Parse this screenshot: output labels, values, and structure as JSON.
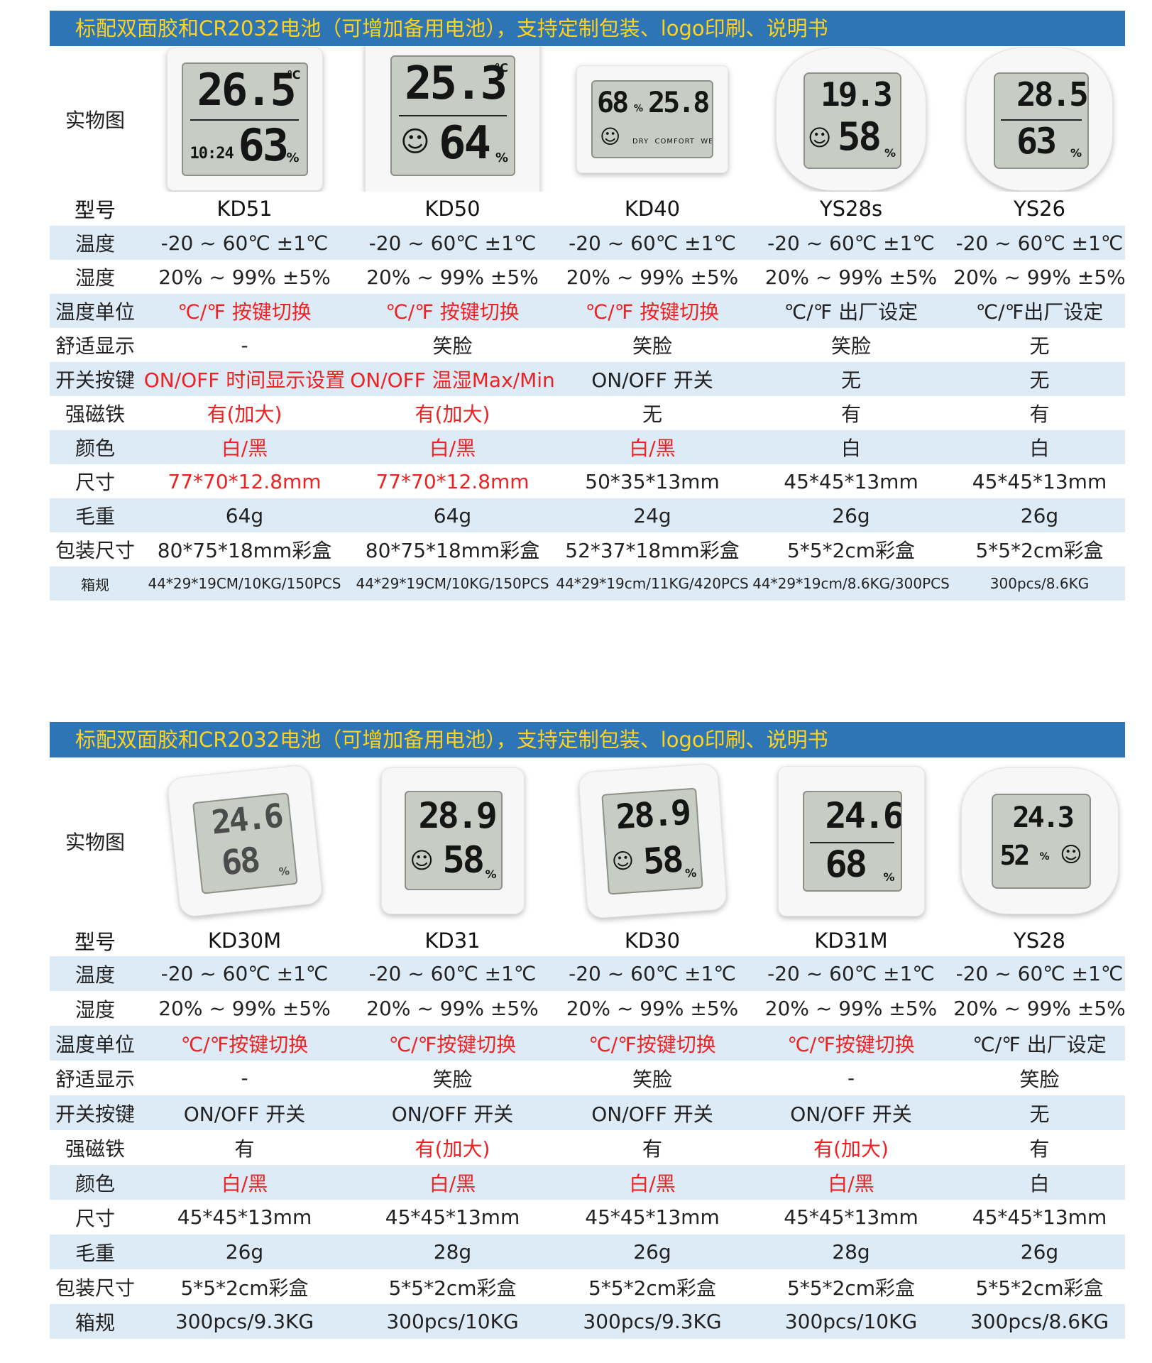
{
  "sections": [
    {
      "banner": "标配双面胶和CR2032电池（可增加备用电池），支持定制包装、logo印刷、说明书",
      "image_label": "实物图",
      "model_label": "型号",
      "products": [
        {
          "model": "KD51",
          "display": {
            "temp": "26.5",
            "hum": "63",
            "extra": "10:24"
          }
        },
        {
          "model": "KD50",
          "display": {
            "temp": "25.3",
            "hum": "64"
          }
        },
        {
          "model": "KD40",
          "display": {
            "temp": "25.8",
            "hum": "68"
          }
        },
        {
          "model": "YS28s",
          "display": {
            "temp": "19.3",
            "hum": "58"
          }
        },
        {
          "model": "YS26",
          "display": {
            "temp": "28.5",
            "hum": "63"
          }
        }
      ],
      "rows": [
        {
          "label": "温度",
          "shade": true,
          "cells": [
            {
              "t": "-20 ~ 60℃ ±1℃"
            },
            {
              "t": "-20 ~ 60℃ ±1℃"
            },
            {
              "t": "-20 ~ 60℃ ±1℃"
            },
            {
              "t": "-20 ~ 60℃ ±1℃"
            },
            {
              "t": "-20 ~ 60℃ ±1℃"
            }
          ]
        },
        {
          "label": "湿度",
          "shade": false,
          "cells": [
            {
              "t": "20% ~ 99% ±5%"
            },
            {
              "t": "20% ~ 99% ±5%"
            },
            {
              "t": "20% ~ 99% ±5%"
            },
            {
              "t": "20% ~ 99% ±5%"
            },
            {
              "t": "20% ~ 99% ±5%"
            }
          ]
        },
        {
          "label": "温度单位",
          "shade": true,
          "cells": [
            {
              "t": "℃/℉  按键切换",
              "red": true
            },
            {
              "t": "℃/℉  按键切换",
              "red": true
            },
            {
              "t": "℃/℉  按键切换",
              "red": true
            },
            {
              "t": "℃/℉  出厂设定"
            },
            {
              "t": "℃/℉出厂设定"
            }
          ]
        },
        {
          "label": "舒适显示",
          "shade": false,
          "cells": [
            {
              "t": "-"
            },
            {
              "t": "笑脸"
            },
            {
              "t": "笑脸"
            },
            {
              "t": "笑脸"
            },
            {
              "t": "无"
            }
          ]
        },
        {
          "label": "开关按键",
          "shade": true,
          "cells": [
            {
              "t": "ON/OFF 时间显示设置",
              "red": true
            },
            {
              "t": "ON/OFF 温湿Max/Min",
              "red": true
            },
            {
              "t": "ON/OFF   开关"
            },
            {
              "t": "无"
            },
            {
              "t": "无"
            }
          ]
        },
        {
          "label": "强磁铁",
          "shade": false,
          "cells": [
            {
              "t": "有(加大)",
              "red": true
            },
            {
              "t": "有(加大)",
              "red": true
            },
            {
              "t": "无"
            },
            {
              "t": "有"
            },
            {
              "t": "有"
            }
          ]
        },
        {
          "label": "颜色",
          "shade": true,
          "cells": [
            {
              "t": "白/黑",
              "red": true
            },
            {
              "t": "白/黑",
              "red": true
            },
            {
              "t": "白/黑",
              "red": true
            },
            {
              "t": "白"
            },
            {
              "t": "白"
            }
          ]
        },
        {
          "label": "尺寸",
          "shade": false,
          "cells": [
            {
              "t": "77*70*12.8mm",
              "red": true
            },
            {
              "t": "77*70*12.8mm",
              "red": true
            },
            {
              "t": "50*35*13mm"
            },
            {
              "t": "45*45*13mm"
            },
            {
              "t": "45*45*13mm"
            }
          ]
        },
        {
          "label": "毛重",
          "shade": true,
          "cells": [
            {
              "t": "64g"
            },
            {
              "t": "64g"
            },
            {
              "t": "24g"
            },
            {
              "t": "26g"
            },
            {
              "t": "26g"
            }
          ]
        },
        {
          "label": "包装尺寸",
          "shade": false,
          "cells": [
            {
              "t": "80*75*18mm彩盒"
            },
            {
              "t": "80*75*18mm彩盒"
            },
            {
              "t": "52*37*18mm彩盒"
            },
            {
              "t": "5*5*2cm彩盒"
            },
            {
              "t": "5*5*2cm彩盒"
            }
          ]
        },
        {
          "label": "箱规",
          "shade": true,
          "small": true,
          "cells": [
            {
              "t": "44*29*19CM/10KG/150PCS"
            },
            {
              "t": "44*29*19CM/10KG/150PCS"
            },
            {
              "t": "44*29*19cm/11KG/420PCS"
            },
            {
              "t": "44*29*19cm/8.6KG/300PCS"
            },
            {
              "t": "300pcs/8.6KG"
            }
          ]
        }
      ]
    },
    {
      "banner": "标配双面胶和CR2032电池（可增加备用电池），支持定制包装、logo印刷、说明书",
      "image_label": "实物图",
      "model_label": "型号",
      "products": [
        {
          "model": "KD30M",
          "display": {
            "temp": "24.6",
            "hum": "68"
          }
        },
        {
          "model": "KD31",
          "display": {
            "temp": "28.9",
            "hum": "58"
          }
        },
        {
          "model": "KD30",
          "display": {
            "temp": "28.9",
            "hum": "58"
          }
        },
        {
          "model": "KD31M",
          "display": {
            "temp": "24.6",
            "hum": "68"
          }
        },
        {
          "model": "YS28",
          "display": {
            "temp": "24.3",
            "hum": "52"
          }
        }
      ],
      "rows": [
        {
          "label": "温度",
          "shade": true,
          "cells": [
            {
              "t": "-20 ~ 60℃ ±1℃"
            },
            {
              "t": "-20 ~ 60℃ ±1℃"
            },
            {
              "t": "-20 ~ 60℃ ±1℃"
            },
            {
              "t": "-20 ~ 60℃ ±1℃"
            },
            {
              "t": "-20 ~ 60℃ ±1℃"
            }
          ]
        },
        {
          "label": "湿度",
          "shade": false,
          "cells": [
            {
              "t": "20% ~ 99% ±5%"
            },
            {
              "t": "20% ~ 99% ±5%"
            },
            {
              "t": "20% ~ 99% ±5%"
            },
            {
              "t": "20% ~ 99% ±5%"
            },
            {
              "t": "20% ~ 99% ±5%"
            }
          ]
        },
        {
          "label": "温度单位",
          "shade": true,
          "cells": [
            {
              "t": "℃/℉按键切换",
              "red": true
            },
            {
              "t": "℃/℉按键切换",
              "red": true
            },
            {
              "t": "℃/℉按键切换",
              "red": true
            },
            {
              "t": "℃/℉按键切换",
              "red": true
            },
            {
              "t": "℃/℉  出厂设定"
            }
          ]
        },
        {
          "label": "舒适显示",
          "shade": false,
          "cells": [
            {
              "t": "-"
            },
            {
              "t": "笑脸"
            },
            {
              "t": "笑脸"
            },
            {
              "t": "-"
            },
            {
              "t": "笑脸"
            }
          ]
        },
        {
          "label": "开关按键",
          "shade": true,
          "cells": [
            {
              "t": "ON/OFF   开关"
            },
            {
              "t": "ON/OFF   开关"
            },
            {
              "t": "ON/OFF   开关"
            },
            {
              "t": "ON/OFF   开关"
            },
            {
              "t": "无"
            }
          ]
        },
        {
          "label": "强磁铁",
          "shade": false,
          "cells": [
            {
              "t": "有"
            },
            {
              "t": "有(加大)",
              "red": true
            },
            {
              "t": "有"
            },
            {
              "t": "有(加大)",
              "red": true
            },
            {
              "t": "有"
            }
          ]
        },
        {
          "label": "颜色",
          "shade": true,
          "cells": [
            {
              "t": "白/黑",
              "red": true
            },
            {
              "t": "白/黑",
              "red": true
            },
            {
              "t": "白/黑",
              "red": true
            },
            {
              "t": "白/黑",
              "red": true
            },
            {
              "t": "白"
            }
          ]
        },
        {
          "label": "尺寸",
          "shade": false,
          "cells": [
            {
              "t": "45*45*13mm"
            },
            {
              "t": "45*45*13mm"
            },
            {
              "t": "45*45*13mm"
            },
            {
              "t": "45*45*13mm"
            },
            {
              "t": "45*45*13mm"
            }
          ]
        },
        {
          "label": "毛重",
          "shade": true,
          "cells": [
            {
              "t": "26g"
            },
            {
              "t": "28g"
            },
            {
              "t": "26g"
            },
            {
              "t": "28g"
            },
            {
              "t": "26g"
            }
          ]
        },
        {
          "label": "包装尺寸",
          "shade": false,
          "cells": [
            {
              "t": "5*5*2cm彩盒"
            },
            {
              "t": "5*5*2cm彩盒"
            },
            {
              "t": "5*5*2cm彩盒"
            },
            {
              "t": "5*5*2cm彩盒"
            },
            {
              "t": "5*5*2cm彩盒"
            }
          ]
        },
        {
          "label": "箱规",
          "shade": true,
          "cells": [
            {
              "t": "300pcs/9.3KG"
            },
            {
              "t": "300pcs/10KG"
            },
            {
              "t": "300pcs/9.3KG"
            },
            {
              "t": "300pcs/10KG"
            },
            {
              "t": "300pcs/8.6KG"
            }
          ]
        }
      ]
    }
  ],
  "colors": {
    "banner_bg": "#2e75b6",
    "banner_text": "#ffd21f",
    "shade": "#ddebf7",
    "red": "#ee2222"
  }
}
